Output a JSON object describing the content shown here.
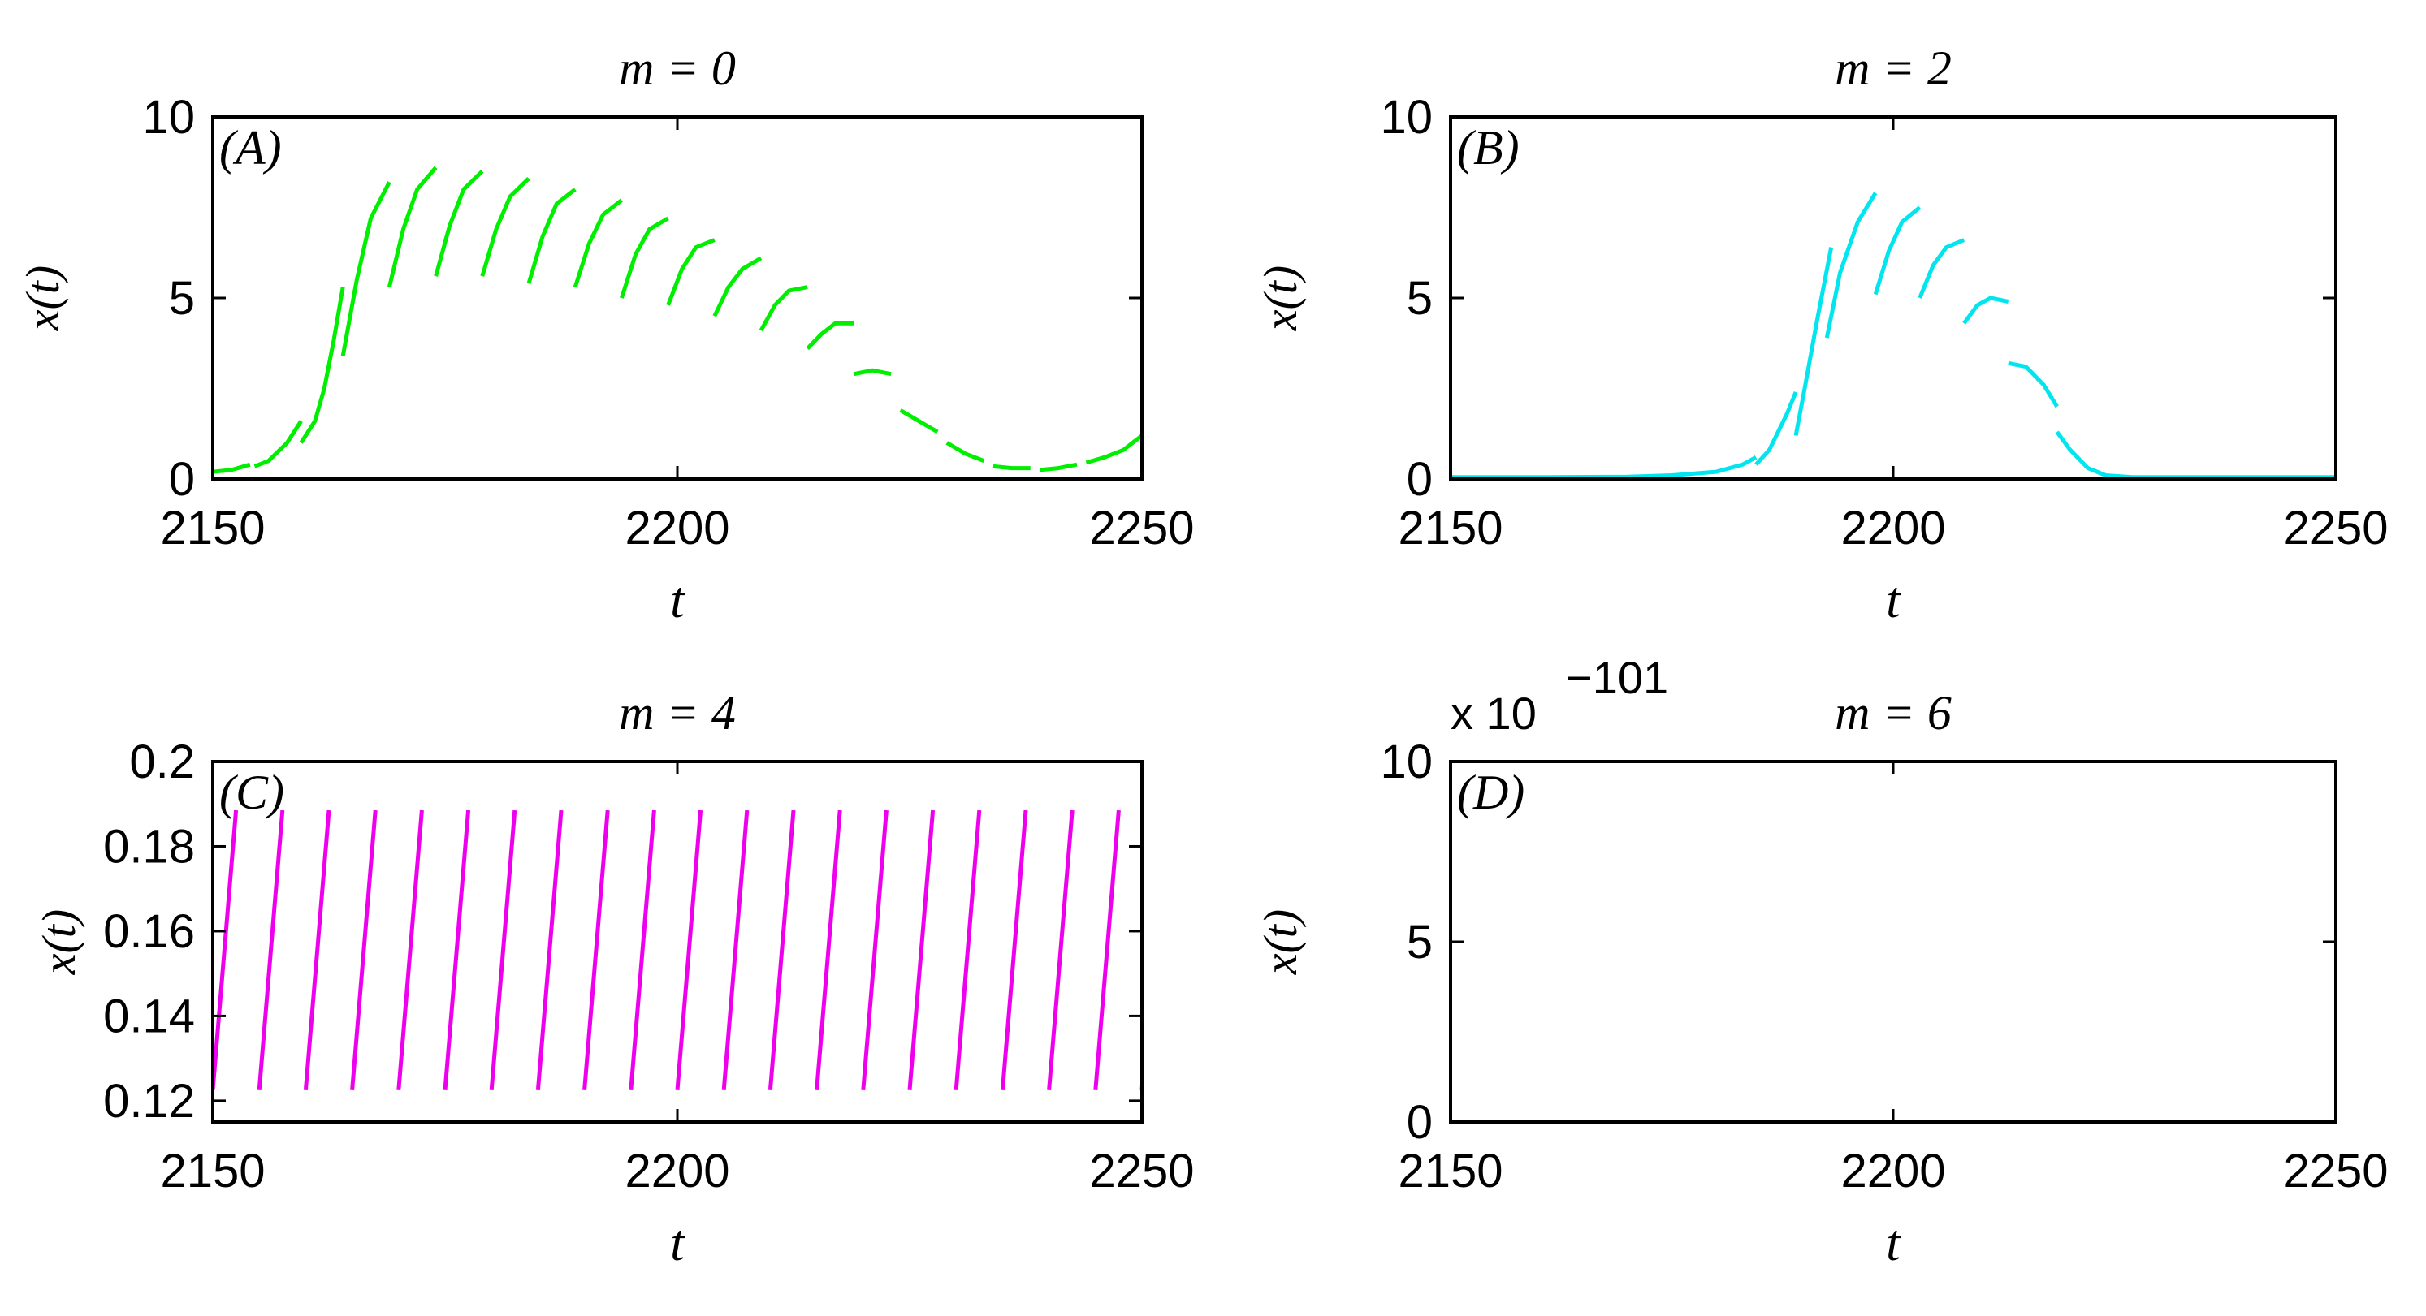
{
  "chart_data": [
    {
      "panel": "A",
      "type": "line",
      "title": "m = 0",
      "panel_label": "(A)",
      "xlabel": "t",
      "ylabel": "x(t)",
      "xlim": [
        2150,
        2250
      ],
      "ylim": [
        0,
        10
      ],
      "xticks": [
        2150,
        2200,
        2250
      ],
      "yticks": [
        0,
        5,
        10
      ],
      "xtick_labels": [
        "2150",
        "2200",
        "2250"
      ],
      "ytick_labels": [
        "0",
        "5",
        "10"
      ],
      "exponent_label": "",
      "color": "#00ee00",
      "segments": [
        [
          [
            2150,
            0.2
          ],
          [
            2152,
            0.25
          ],
          [
            2154,
            0.4
          ]
        ],
        [
          [
            2154.5,
            0.35
          ],
          [
            2156,
            0.5
          ],
          [
            2158,
            1.0
          ],
          [
            2159.5,
            1.6
          ]
        ],
        [
          [
            2159.5,
            1.0
          ],
          [
            2161,
            1.6
          ],
          [
            2162,
            2.5
          ],
          [
            2163,
            3.8
          ],
          [
            2164,
            5.3
          ]
        ],
        [
          [
            2164,
            3.4
          ],
          [
            2165.5,
            5.5
          ],
          [
            2167,
            7.2
          ],
          [
            2169,
            8.2
          ]
        ],
        [
          [
            2169,
            5.3
          ],
          [
            2170.5,
            6.9
          ],
          [
            2172,
            8.0
          ],
          [
            2174,
            8.6
          ]
        ],
        [
          [
            2174,
            5.6
          ],
          [
            2175.5,
            7.0
          ],
          [
            2177,
            8.0
          ],
          [
            2179,
            8.5
          ]
        ],
        [
          [
            2179,
            5.6
          ],
          [
            2180.5,
            6.9
          ],
          [
            2182,
            7.8
          ],
          [
            2184,
            8.3
          ]
        ],
        [
          [
            2184,
            5.4
          ],
          [
            2185.5,
            6.7
          ],
          [
            2187,
            7.6
          ],
          [
            2189,
            8.0
          ]
        ],
        [
          [
            2189,
            5.3
          ],
          [
            2190.5,
            6.5
          ],
          [
            2192,
            7.3
          ],
          [
            2194,
            7.7
          ]
        ],
        [
          [
            2194,
            5.0
          ],
          [
            2195.5,
            6.2
          ],
          [
            2197,
            6.9
          ],
          [
            2199,
            7.2
          ]
        ],
        [
          [
            2199,
            4.8
          ],
          [
            2200.5,
            5.8
          ],
          [
            2202,
            6.4
          ],
          [
            2204,
            6.6
          ]
        ],
        [
          [
            2204,
            4.5
          ],
          [
            2205.5,
            5.3
          ],
          [
            2207,
            5.8
          ],
          [
            2209,
            6.1
          ]
        ],
        [
          [
            2209,
            4.1
          ],
          [
            2210.5,
            4.8
          ],
          [
            2212,
            5.2
          ],
          [
            2214,
            5.3
          ]
        ],
        [
          [
            2214,
            3.6
          ],
          [
            2215.5,
            4.0
          ],
          [
            2217,
            4.3
          ],
          [
            2219,
            4.3
          ]
        ],
        [
          [
            2219,
            2.9
          ],
          [
            2221,
            3.0
          ],
          [
            2223,
            2.9
          ]
        ],
        [
          [
            2224,
            1.9
          ],
          [
            2226,
            1.6
          ],
          [
            2228,
            1.3
          ]
        ],
        [
          [
            2229,
            1.0
          ],
          [
            2231,
            0.7
          ],
          [
            2233,
            0.5
          ]
        ],
        [
          [
            2234,
            0.35
          ],
          [
            2236,
            0.3
          ],
          [
            2238,
            0.3
          ]
        ],
        [
          [
            2239,
            0.25
          ],
          [
            2241,
            0.3
          ],
          [
            2243,
            0.4
          ]
        ],
        [
          [
            2244,
            0.45
          ],
          [
            2246,
            0.6
          ],
          [
            2248,
            0.8
          ],
          [
            2250,
            1.2
          ]
        ]
      ]
    },
    {
      "panel": "B",
      "type": "line",
      "title": "m = 2",
      "panel_label": "(B)",
      "xlabel": "t",
      "ylabel": "x(t)",
      "xlim": [
        2150,
        2250
      ],
      "ylim": [
        0,
        10
      ],
      "xticks": [
        2150,
        2200,
        2250
      ],
      "yticks": [
        0,
        5,
        10
      ],
      "xtick_labels": [
        "2150",
        "2200",
        "2250"
      ],
      "ytick_labels": [
        "0",
        "5",
        "10"
      ],
      "exponent_label": "",
      "color": "#00e5ee",
      "segments": [
        [
          [
            2150,
            0.05
          ],
          [
            2160,
            0.05
          ],
          [
            2170,
            0.06
          ],
          [
            2175,
            0.1
          ],
          [
            2180,
            0.2
          ],
          [
            2183,
            0.4
          ],
          [
            2184.5,
            0.6
          ]
        ],
        [
          [
            2184.5,
            0.4
          ],
          [
            2186,
            0.8
          ],
          [
            2187,
            1.3
          ],
          [
            2188,
            1.8
          ],
          [
            2189,
            2.4
          ]
        ],
        [
          [
            2189,
            1.2
          ],
          [
            2190,
            2.5
          ],
          [
            2191.5,
            4.5
          ],
          [
            2193,
            6.4
          ]
        ],
        [
          [
            2192.5,
            3.9
          ],
          [
            2194,
            5.7
          ],
          [
            2196,
            7.1
          ],
          [
            2198,
            7.9
          ]
        ],
        [
          [
            2198,
            5.1
          ],
          [
            2199.5,
            6.3
          ],
          [
            2201,
            7.1
          ],
          [
            2203,
            7.5
          ]
        ],
        [
          [
            2203,
            5.0
          ],
          [
            2204.5,
            5.9
          ],
          [
            2206,
            6.4
          ],
          [
            2208,
            6.6
          ]
        ],
        [
          [
            2208,
            4.3
          ],
          [
            2209.5,
            4.8
          ],
          [
            2211,
            5.0
          ],
          [
            2213,
            4.9
          ]
        ],
        [
          [
            2213,
            3.2
          ],
          [
            2215,
            3.1
          ],
          [
            2217,
            2.6
          ],
          [
            2218.5,
            2.0
          ]
        ],
        [
          [
            2218.5,
            1.3
          ],
          [
            2220,
            0.8
          ],
          [
            2222,
            0.3
          ],
          [
            2224,
            0.1
          ],
          [
            2227,
            0.05
          ],
          [
            2235,
            0.05
          ],
          [
            2250,
            0.05
          ]
        ]
      ]
    },
    {
      "panel": "C",
      "type": "line",
      "title": "m = 4",
      "panel_label": "(C)",
      "xlabel": "t",
      "ylabel": "x(t)",
      "xlim": [
        2150,
        2250
      ],
      "ylim": [
        0.115,
        0.2
      ],
      "xticks": [
        2150,
        2200,
        2250
      ],
      "yticks": [
        0.12,
        0.14,
        0.16,
        0.18,
        0.2
      ],
      "xtick_labels": [
        "2150",
        "2200",
        "2250"
      ],
      "ytick_labels": [
        "0.12",
        "0.14",
        "0.16",
        "0.18",
        "0.2"
      ],
      "exponent_label": "",
      "color": "#ee00ee",
      "sawtooth": {
        "t_start": 2150,
        "t_end": 2250,
        "period": 5,
        "rise_duration": 2.5,
        "low": 0.1225,
        "high": 0.1885
      }
    },
    {
      "panel": "D",
      "type": "line",
      "title": "m = 6",
      "panel_label": "(D)",
      "xlabel": "t",
      "ylabel": "x(t)",
      "xlim": [
        2150,
        2250
      ],
      "ylim": [
        0,
        10
      ],
      "xticks": [
        2150,
        2200,
        2250
      ],
      "yticks": [
        0,
        5,
        10
      ],
      "xtick_labels": [
        "2150",
        "2200",
        "2250"
      ],
      "ytick_labels": [
        "0",
        "5",
        "10"
      ],
      "exponent_label": "x 10",
      "exponent_power": "−101",
      "color": "#e60000",
      "segments": [
        [
          [
            2150,
            0
          ],
          [
            2250,
            0
          ]
        ]
      ]
    }
  ]
}
